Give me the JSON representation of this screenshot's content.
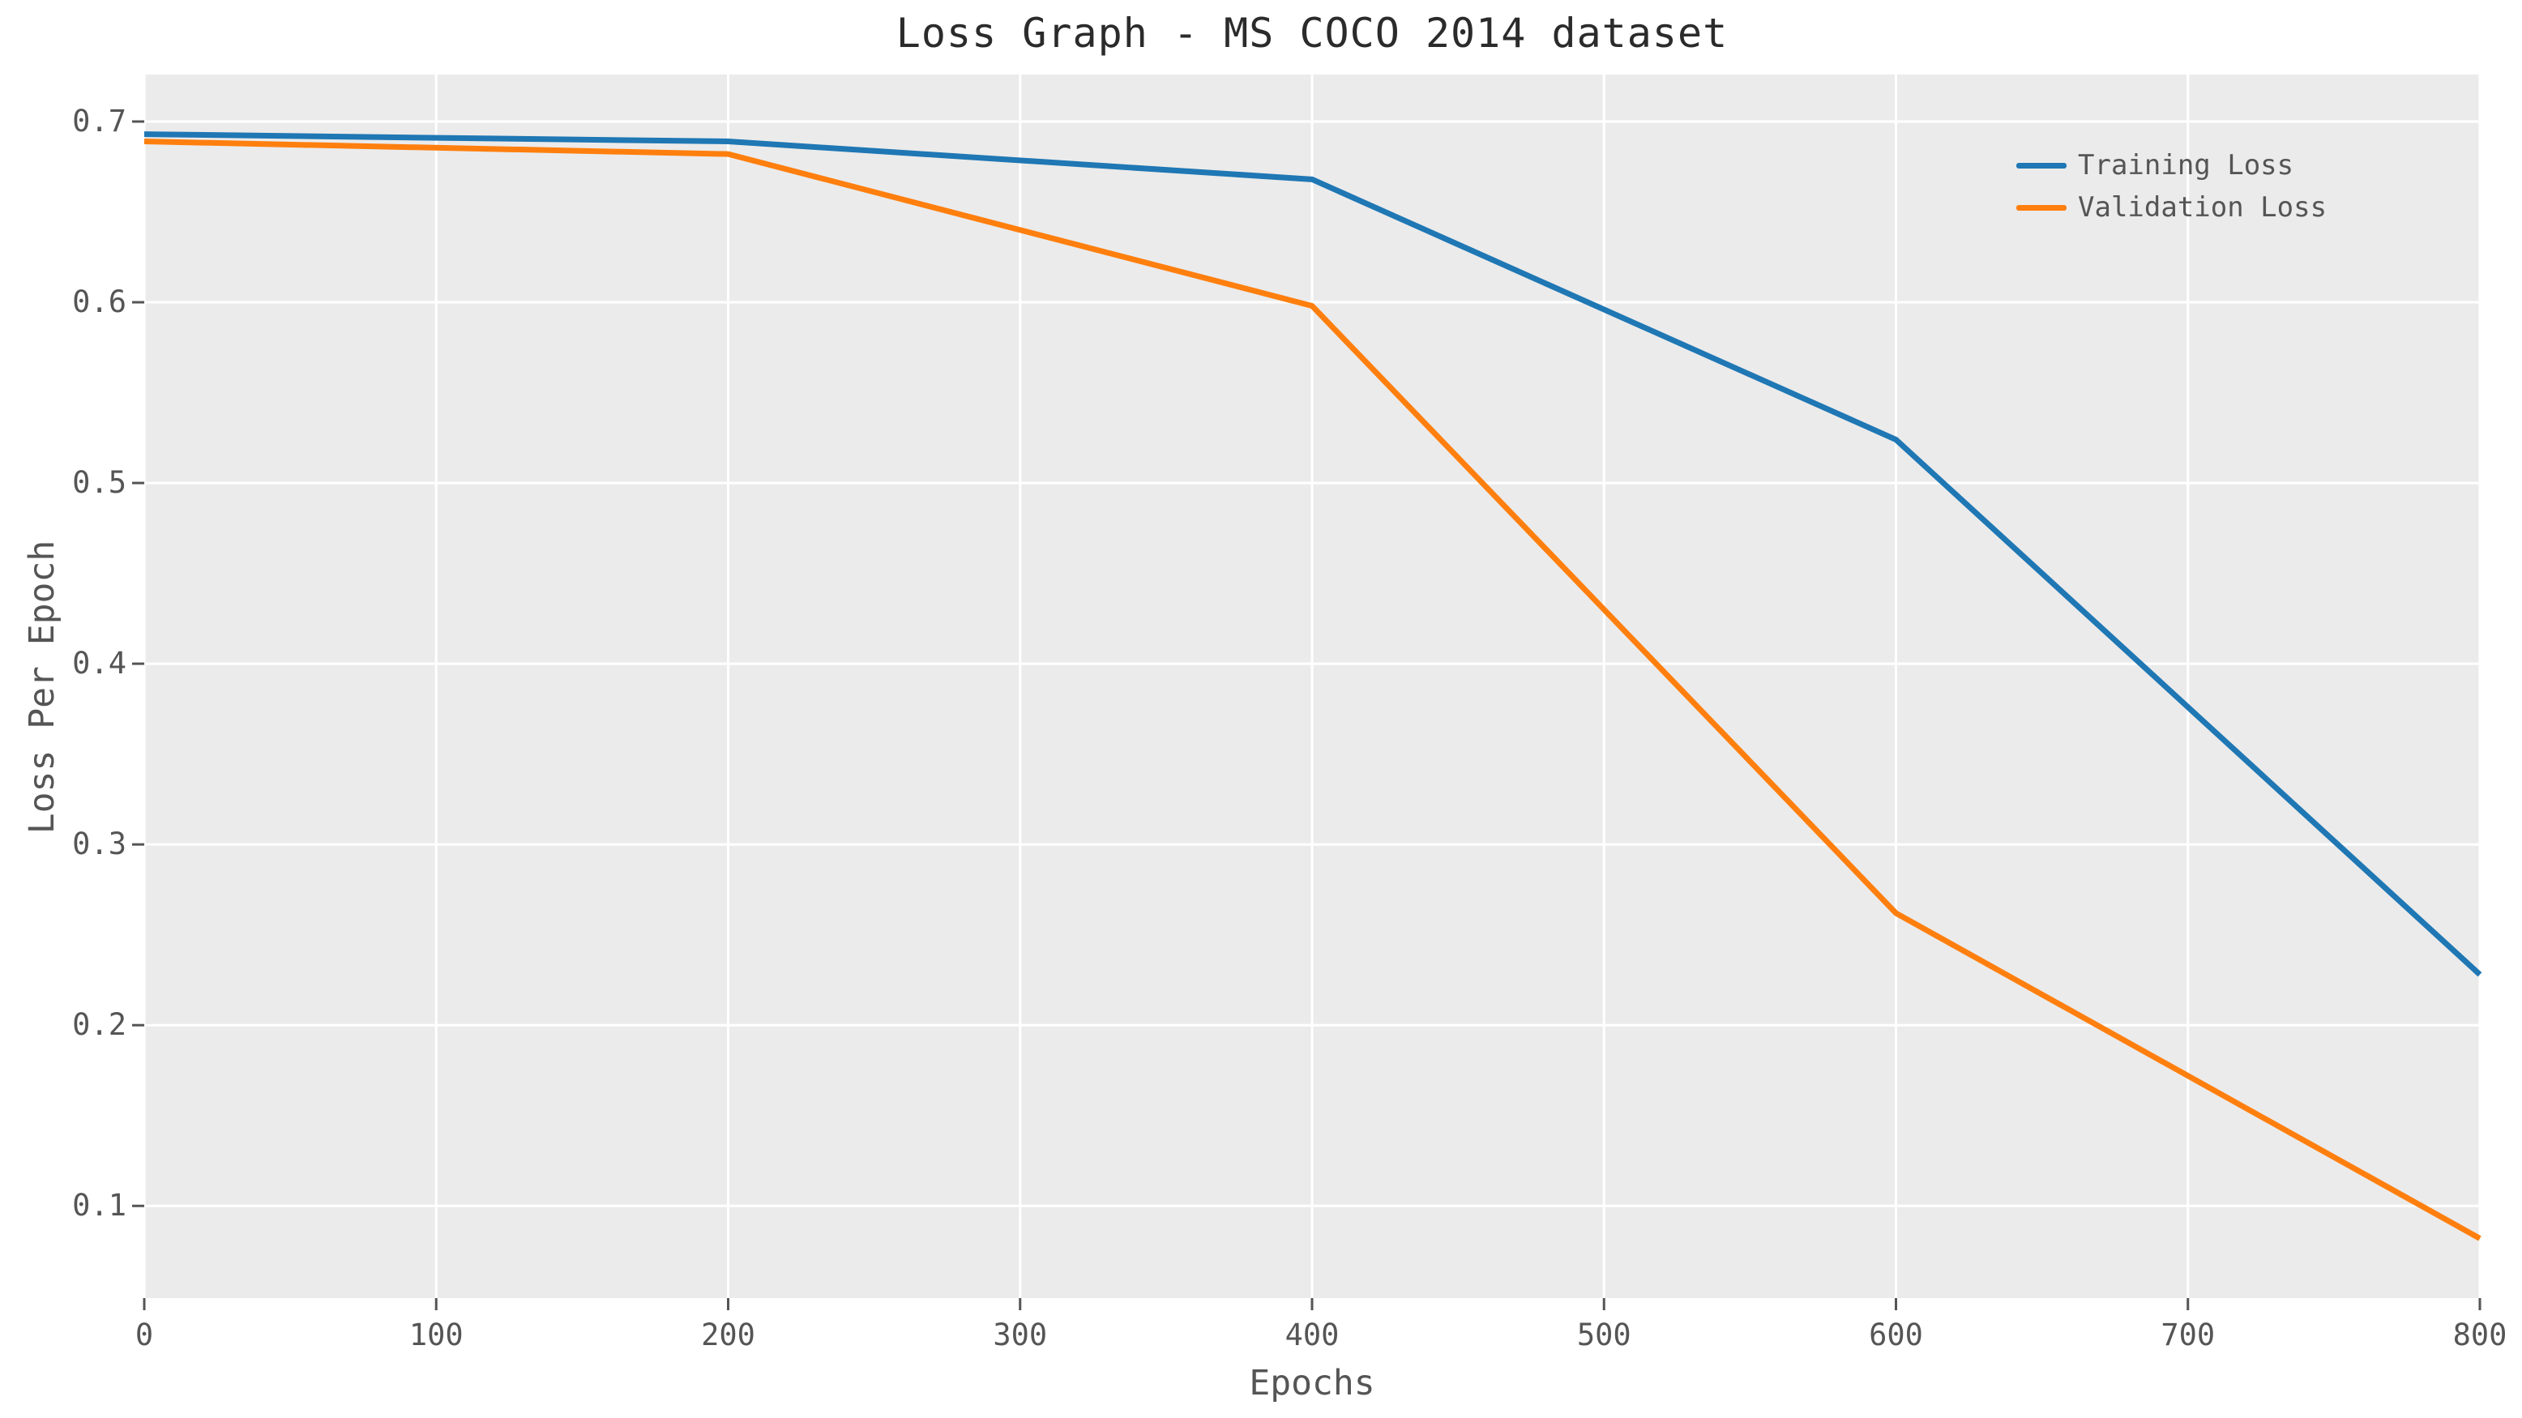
{
  "chart_data": {
    "type": "line",
    "title": "Loss Graph - MS COCO 2014 dataset",
    "xlabel": "Epochs",
    "ylabel": "Loss Per Epoch",
    "x": [
      0,
      200,
      400,
      600,
      800
    ],
    "series": [
      {
        "name": "Training Loss",
        "color": "#1f77b4",
        "values": [
          0.693,
          0.689,
          0.668,
          0.524,
          0.228
        ]
      },
      {
        "name": "Validation Loss",
        "color": "#ff7f0e",
        "values": [
          0.689,
          0.682,
          0.598,
          0.262,
          0.082
        ]
      }
    ],
    "xlim": [
      0,
      800
    ],
    "ylim": [
      0.049,
      0.726
    ],
    "xticks": [
      0,
      100,
      200,
      300,
      400,
      500,
      600,
      700,
      800
    ],
    "yticks": [
      0.1,
      0.2,
      0.3,
      0.4,
      0.5,
      0.6,
      0.7
    ],
    "grid": true,
    "legend_position": "upper right",
    "legend_frame": false,
    "style": {
      "plot_background": "#ebebeb",
      "grid_color": "#ffffff",
      "tick_color": "#555555",
      "text_color": "#555555",
      "title_color": "#2b2b2b",
      "line_width": 7
    }
  }
}
